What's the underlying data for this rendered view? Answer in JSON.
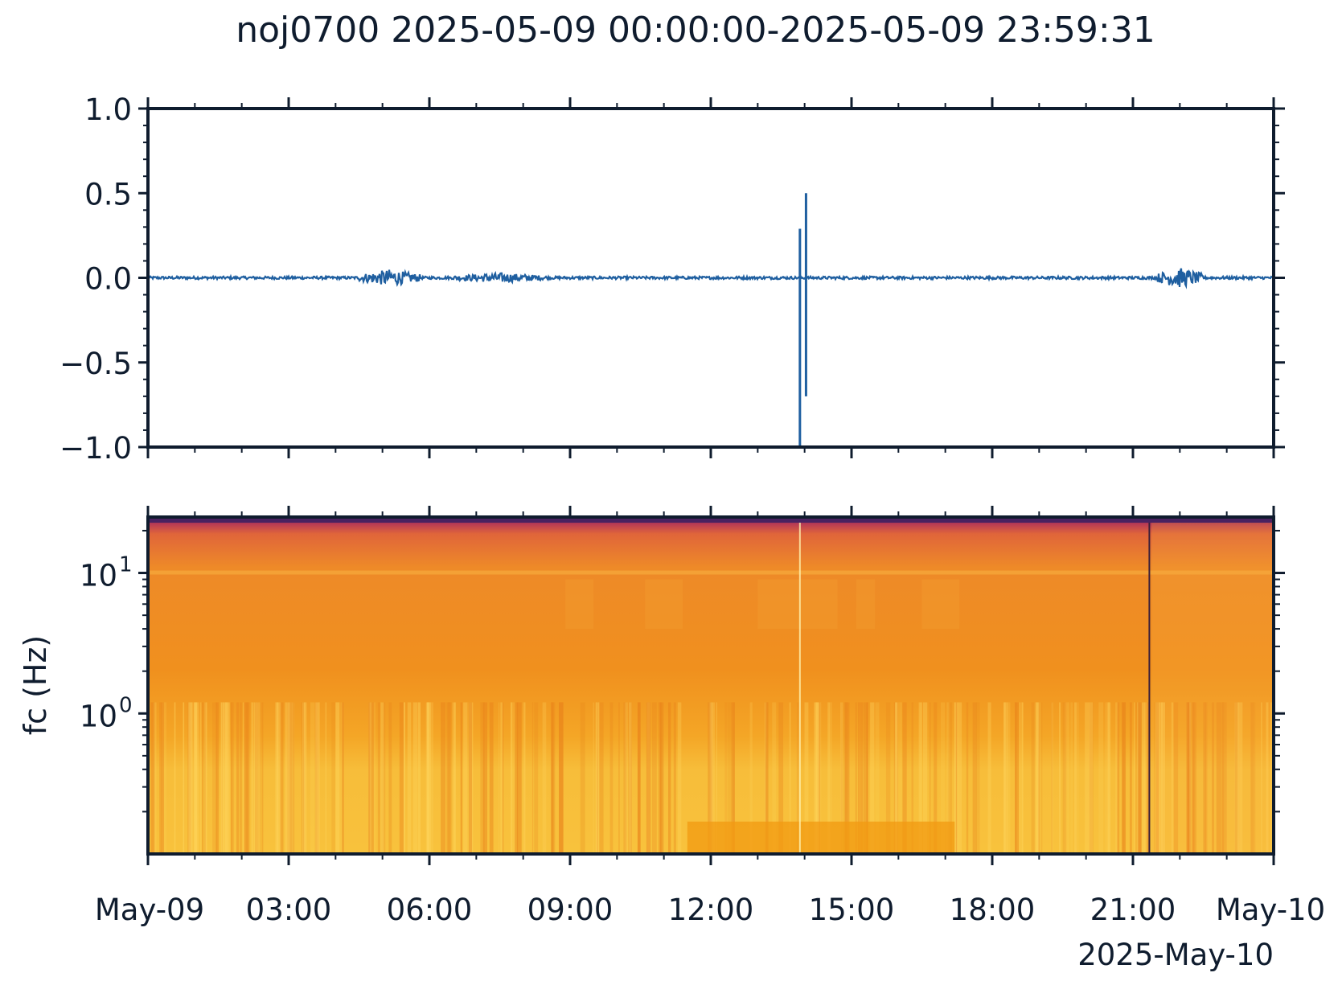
{
  "title": "noj0700 2025-05-09 00:00:00-2025-05-09 23:59:31",
  "colors": {
    "axis": "#0f1c2e",
    "trace": "#1f5fa0"
  },
  "chart_data": [
    {
      "type": "line",
      "panel": "waveform",
      "ylim": [
        -1.0,
        1.0
      ],
      "yticks": [
        1.0,
        0.5,
        0.0,
        -0.5,
        -1.0
      ],
      "ytick_labels": [
        "1.0",
        "0.5",
        "0.0",
        "−0.5",
        "−1.0"
      ],
      "xlim_hours": [
        0,
        24
      ],
      "baseline": 0.0,
      "spikes": [
        {
          "x_hours": 13.9,
          "min": -1.0,
          "max": 0.29
        },
        {
          "x_hours": 14.03,
          "min": -0.7,
          "max": 0.5
        }
      ],
      "noise_bursts": [
        {
          "start_hours": 4.5,
          "end_hours": 5.8,
          "amplitude": 0.05
        },
        {
          "start_hours": 6.5,
          "end_hours": 8.5,
          "amplitude": 0.03
        },
        {
          "start_hours": 21.5,
          "end_hours": 22.5,
          "amplitude": 0.06
        }
      ]
    },
    {
      "type": "heatmap",
      "panel": "spectrogram",
      "ylabel": "fc (Hz)",
      "yscale": "log",
      "ylim": [
        0.1,
        25
      ],
      "yticks": [
        {
          "base": "10",
          "exp": "1",
          "value": 10
        },
        {
          "base": "10",
          "exp": "0",
          "value": 1
        }
      ],
      "xticks": [
        "May-09",
        "03:00",
        "06:00",
        "09:00",
        "12:00",
        "15:00",
        "18:00",
        "21:00",
        "May-10"
      ],
      "xtick_hours": [
        0,
        3,
        6,
        9,
        12,
        15,
        18,
        21,
        24
      ],
      "xlabel_offset": "2025-May-10",
      "gap_line_hours": 21.35,
      "bright_line_hours": 13.9
    }
  ]
}
